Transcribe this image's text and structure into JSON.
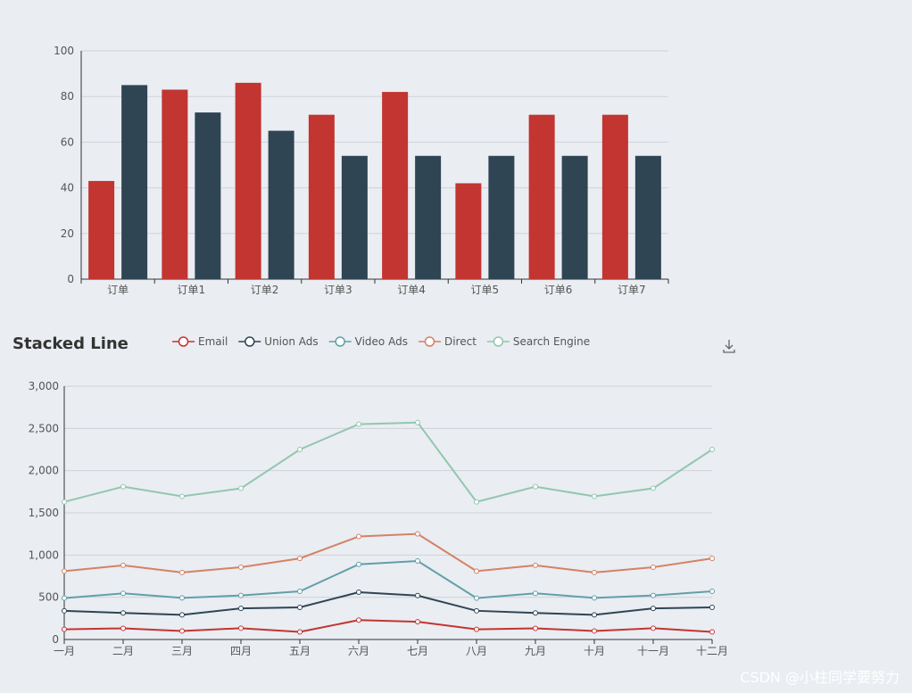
{
  "chart_data": [
    {
      "type": "bar",
      "categories": [
        "订单",
        "订单1",
        "订单2",
        "订单3",
        "订单4",
        "订单5",
        "订单6",
        "订单7"
      ],
      "series": [
        {
          "color": "#c23531",
          "values": [
            43,
            83,
            86,
            72,
            82,
            42,
            72,
            72
          ]
        },
        {
          "color": "#2f4554",
          "values": [
            85,
            73,
            65,
            54,
            54,
            54,
            54,
            54
          ]
        }
      ],
      "ylim": [
        0,
        100
      ],
      "yticks": [
        0,
        20,
        40,
        60,
        80,
        100
      ],
      "grid": true
    },
    {
      "type": "line",
      "title": "Stacked Line",
      "stacked": true,
      "categories": [
        "一月",
        "二月",
        "三月",
        "四月",
        "五月",
        "六月",
        "七月",
        "八月",
        "九月",
        "十月",
        "十一月",
        "十二月"
      ],
      "series": [
        {
          "name": "Email",
          "color": "#c23531",
          "values": [
            120,
            132,
            101,
            134,
            90,
            230,
            210,
            120,
            132,
            101,
            134,
            90
          ]
        },
        {
          "name": "Union Ads",
          "color": "#2f4554",
          "values": [
            220,
            182,
            191,
            234,
            290,
            330,
            310,
            220,
            182,
            191,
            234,
            290
          ]
        },
        {
          "name": "Video Ads",
          "color": "#61a0a8",
          "values": [
            150,
            232,
            201,
            154,
            190,
            330,
            410,
            150,
            232,
            201,
            154,
            190
          ]
        },
        {
          "name": "Direct",
          "color": "#d48265",
          "values": [
            320,
            332,
            301,
            334,
            390,
            330,
            320,
            320,
            332,
            301,
            334,
            390
          ]
        },
        {
          "name": "Search Engine",
          "color": "#91c7ae",
          "values": [
            820,
            932,
            901,
            934,
            1290,
            1330,
            1320,
            820,
            932,
            901,
            934,
            1290
          ]
        }
      ],
      "ylim": [
        0,
        3000
      ],
      "yticks": [
        "0",
        "500",
        "1,000",
        "1,500",
        "2,000",
        "2,500",
        "3,000"
      ],
      "legend": "top",
      "grid": true,
      "toolbox_icon": "download-icon"
    }
  ],
  "watermark": "CSDN @小柱同学要努力"
}
